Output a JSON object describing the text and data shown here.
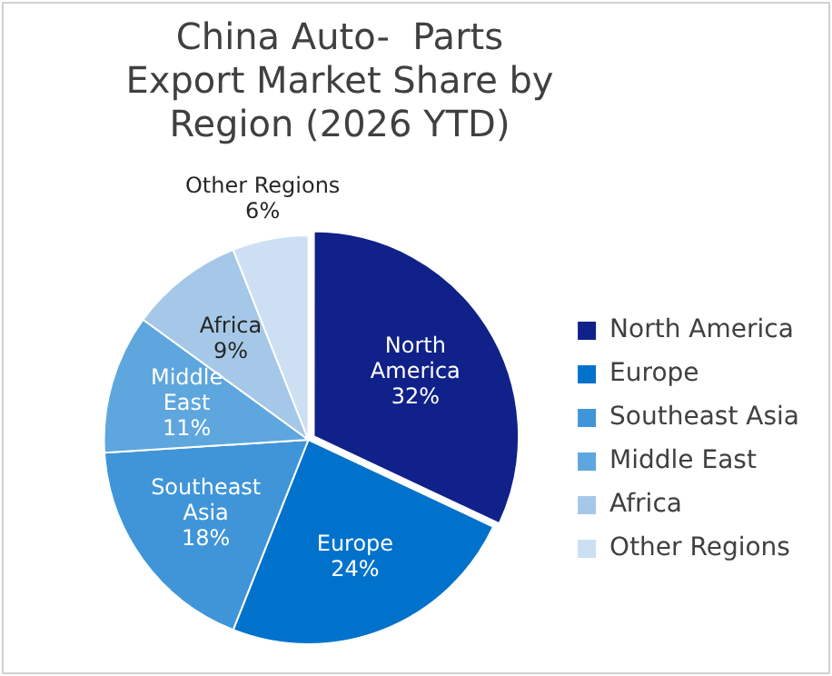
{
  "chart_data": {
    "type": "pie",
    "title": "China Auto-  Parts Export Market Share by Region (2026 YTD)",
    "categories": [
      "North America",
      "Europe",
      "Southeast Asia",
      "Middle East",
      "Africa",
      "Other Regions"
    ],
    "values": [
      32,
      24,
      18,
      11,
      9,
      6
    ],
    "colors": [
      "#10218a",
      "#0072cc",
      "#3f95d8",
      "#5ea6de",
      "#a6c8e8",
      "#cddff3"
    ],
    "value_labels": [
      "32%",
      "24%",
      "18%",
      "11%",
      "9%",
      "6%"
    ],
    "legend": "right"
  }
}
